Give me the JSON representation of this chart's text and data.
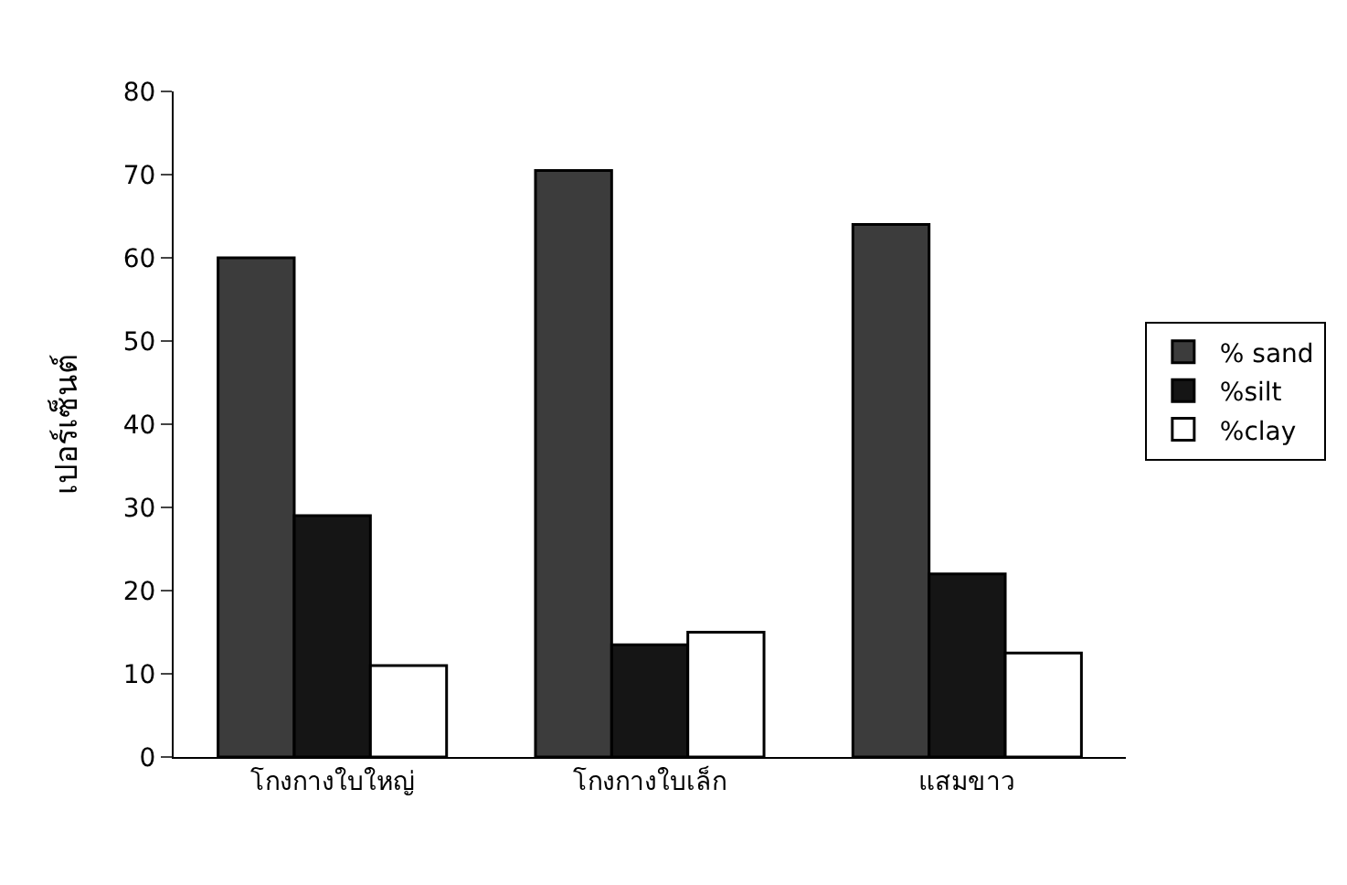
{
  "chart_data": {
    "type": "bar",
    "ylabel": "เปอร์เซ็นต์",
    "categories": [
      "โกงกางใบใหญ่",
      "โกงกางใบเล็ก",
      "แสมขาว"
    ],
    "series": [
      {
        "name": "% sand",
        "color": "#3c3c3c",
        "values": [
          60,
          70.5,
          64
        ]
      },
      {
        "name": "%silt",
        "color": "#151515",
        "values": [
          29,
          13.5,
          22
        ]
      },
      {
        "name": "%clay",
        "color": "#ffffff",
        "values": [
          11,
          15,
          12.5
        ]
      }
    ],
    "ylim": [
      0,
      80
    ],
    "yticks": [
      0,
      10,
      20,
      30,
      40,
      50,
      60,
      70,
      80
    ],
    "legend": "right"
  }
}
